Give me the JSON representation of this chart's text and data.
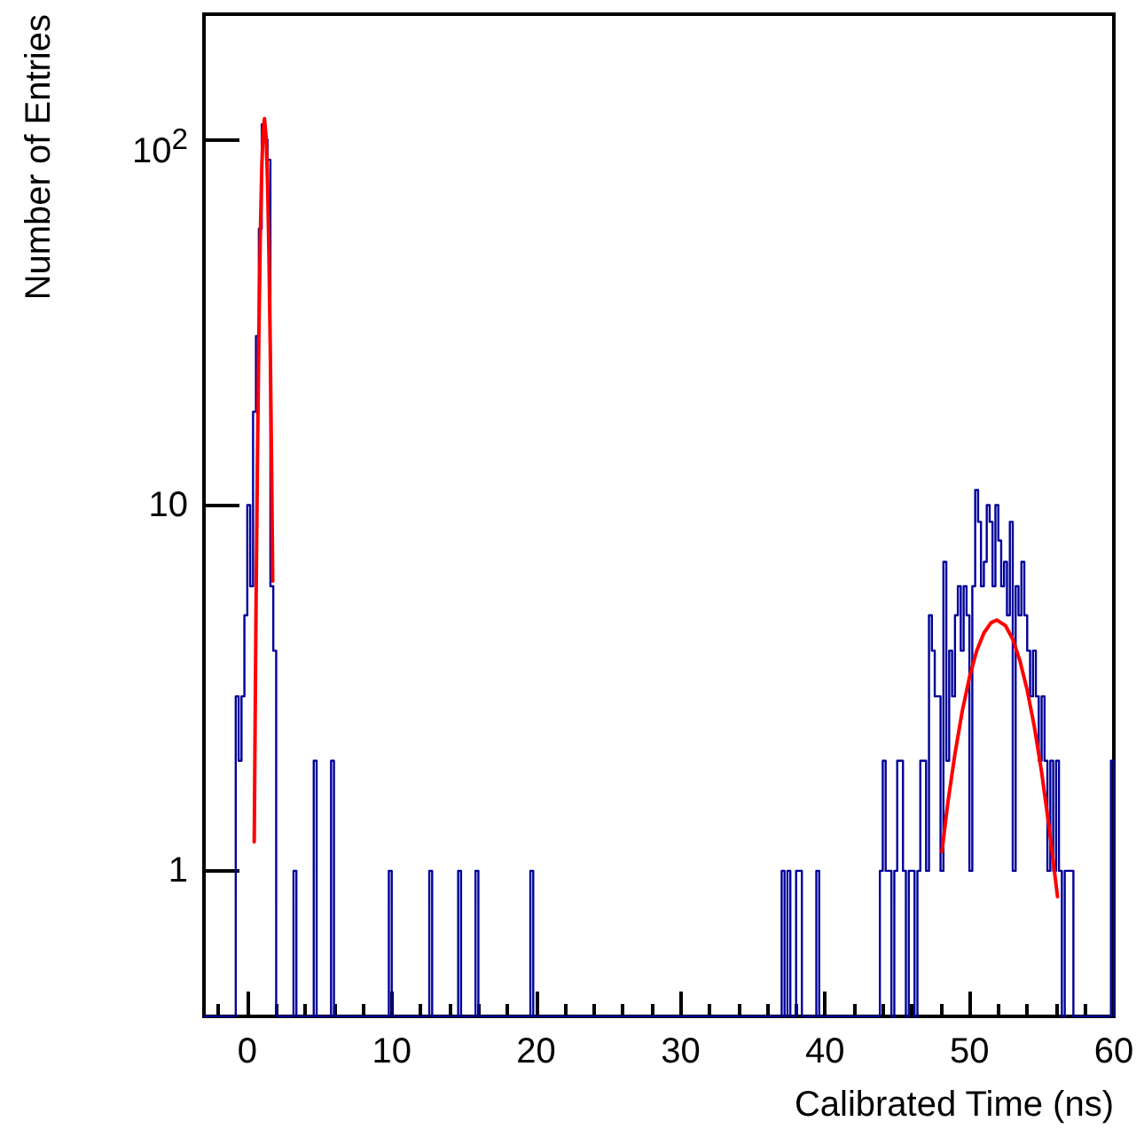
{
  "chart_data": {
    "type": "histogram",
    "xlabel": "Calibrated Time (ns)",
    "ylabel": "Number of Entries",
    "xlim": [
      -3,
      60
    ],
    "xticks": [
      0,
      10,
      20,
      30,
      40,
      50,
      60
    ],
    "ylim": [
      0.4,
      220
    ],
    "yticks": [
      1,
      10,
      {
        "value": 100,
        "label": "10$^{2}$"
      }
    ],
    "log": "y",
    "grid": false,
    "marker": "none",
    "line_style": "solid",
    "series": [
      {
        "type": "histogram",
        "color": "#000099",
        "bins": [
          -3,
          -0.8,
          -0.6,
          -0.4,
          -0.2,
          0,
          0.2,
          0.4,
          0.6,
          0.8,
          1,
          1.2,
          1.4,
          1.6,
          1.8,
          2,
          3.2,
          3.4,
          4.6,
          4.8,
          5.8,
          6,
          9.8,
          10,
          12.6,
          12.8,
          14.6,
          14.8,
          15.8,
          16,
          19.6,
          19.8,
          37,
          37.2,
          37.4,
          37.6,
          38,
          38.2,
          38.4,
          39.4,
          39.6,
          43.8,
          44,
          44.2,
          44.4,
          44.6,
          44.8,
          45,
          45.2,
          45.4,
          45.6,
          45.8,
          46,
          46.2,
          46.4,
          46.6,
          46.8,
          47,
          47.2,
          47.4,
          47.6,
          47.8,
          48,
          48.2,
          48.4,
          48.6,
          48.8,
          49,
          49.2,
          49.4,
          49.6,
          49.8,
          50,
          50.2,
          50.4,
          50.6,
          50.8,
          51,
          51.2,
          51.4,
          51.6,
          51.8,
          52,
          52.2,
          52.4,
          52.6,
          52.8,
          53,
          53.2,
          53.4,
          53.6,
          53.8,
          54,
          54.2,
          54.4,
          54.6,
          54.8,
          55,
          55.2,
          55.4,
          55.6,
          55.8,
          56,
          56.2,
          56.4,
          56.6,
          56.8,
          57,
          57.2,
          59.8,
          60
        ],
        "values": [
          null,
          3,
          2,
          3,
          5,
          10,
          6,
          18,
          29,
          57,
          110,
          100,
          88,
          6,
          4,
          null,
          1,
          null,
          2,
          null,
          2,
          null,
          1,
          null,
          1,
          null,
          1,
          null,
          1,
          null,
          1,
          null,
          1,
          null,
          1,
          null,
          1,
          1,
          null,
          1,
          null,
          1,
          2,
          1,
          1,
          null,
          1,
          2,
          2,
          1,
          null,
          1,
          1,
          null,
          1,
          2,
          2,
          1,
          5,
          4,
          3,
          3,
          1,
          7,
          2,
          4,
          3,
          5,
          6,
          4,
          6,
          5,
          1,
          6,
          11,
          9,
          6,
          7,
          10,
          9,
          6,
          10,
          8,
          6,
          7,
          5,
          9,
          1,
          6,
          5,
          7,
          5,
          4,
          3,
          4,
          3,
          2,
          3,
          2,
          1,
          2,
          1,
          2,
          1,
          null,
          1,
          1,
          1,
          null,
          2
        ]
      },
      {
        "type": "line",
        "color": "#ff0000",
        "x": [
          0.48,
          0.6,
          0.7,
          0.8,
          0.9,
          1.0,
          1.1,
          1.19,
          1.3,
          1.4,
          1.5,
          1.6,
          1.7,
          1.76
        ],
        "values": [
          1.2,
          5,
          13,
          29,
          54,
          83,
          106,
          114,
          102,
          77,
          48,
          25,
          11,
          6.2
        ]
      },
      {
        "type": "line",
        "color": "#ff0000",
        "x": [
          48.1,
          48.5,
          49,
          49.5,
          50,
          50.5,
          51,
          51.5,
          51.9,
          52.5,
          53,
          53.5,
          54,
          54.5,
          55,
          55.5,
          56.1
        ],
        "values": [
          1.13,
          1.53,
          2.09,
          2.73,
          3.38,
          3.99,
          4.47,
          4.77,
          4.85,
          4.68,
          4.3,
          3.75,
          3.12,
          2.47,
          1.86,
          1.33,
          0.85
        ]
      }
    ]
  }
}
